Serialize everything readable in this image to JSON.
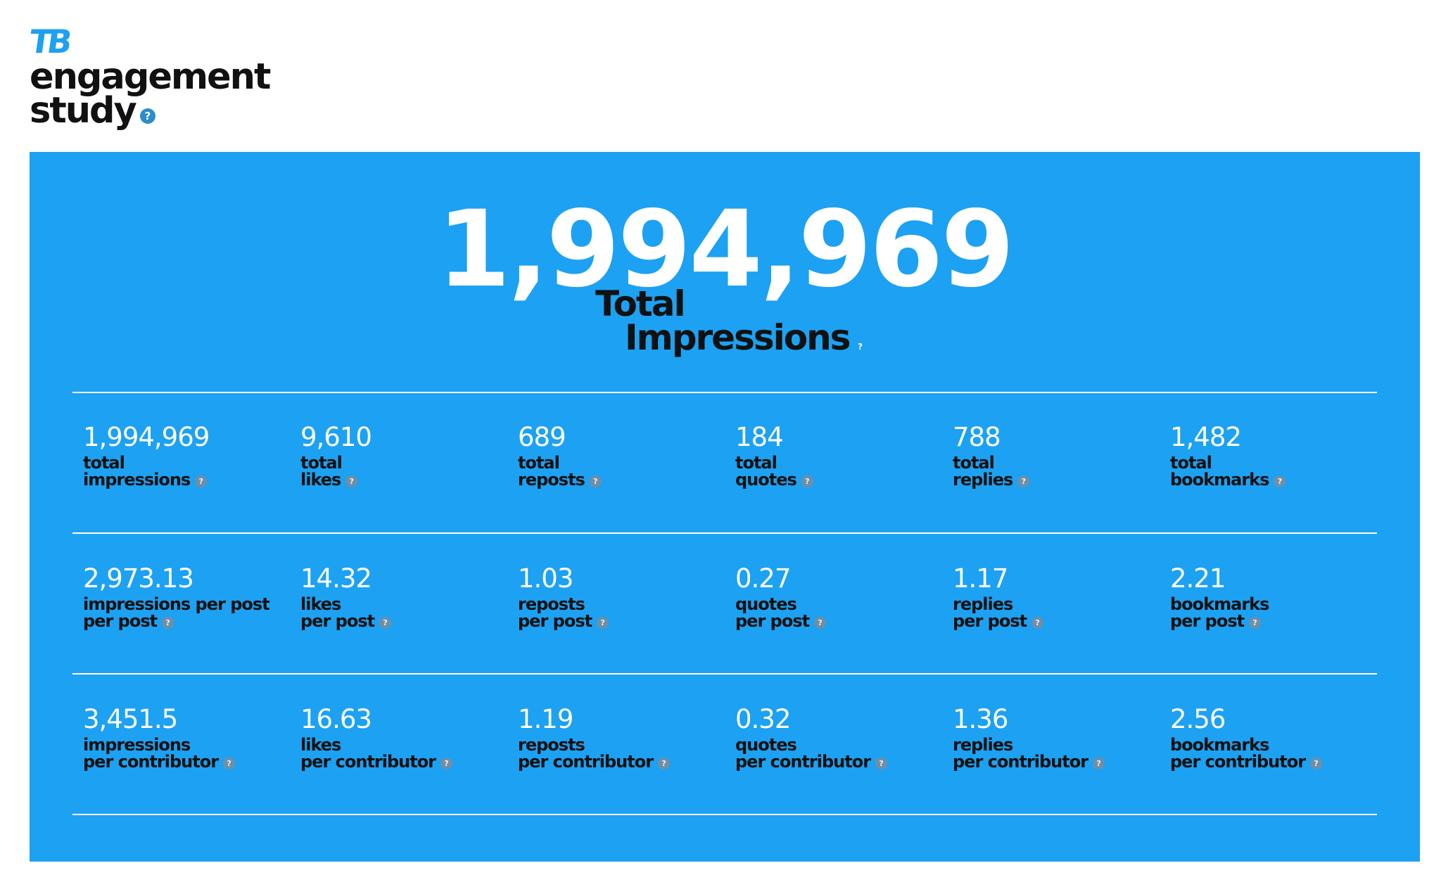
{
  "brand": {
    "logo": "TB",
    "title_line1": "engagement",
    "title_line2": "study",
    "help": "?"
  },
  "hero": {
    "value": "1,994,969",
    "label_line1": "Total",
    "label_line2": "Impressions",
    "help": "?"
  },
  "colors": {
    "panel": "#1da1f2",
    "accent": "#1da1f2",
    "value_text": "#ffffff",
    "label_text": "#111111"
  },
  "icons": {
    "help": "help-circle-icon"
  },
  "rows": [
    {
      "stats": [
        {
          "value": "1,994,969",
          "line1": "total",
          "line2": "impressions",
          "help": "?"
        },
        {
          "value": "9,610",
          "line1": "total",
          "line2": "likes",
          "help": "?"
        },
        {
          "value": "689",
          "line1": "total",
          "line2": "reposts",
          "help": "?"
        },
        {
          "value": "184",
          "line1": "total",
          "line2": "quotes",
          "help": "?"
        },
        {
          "value": "788",
          "line1": "total",
          "line2": "replies",
          "help": "?"
        },
        {
          "value": "1,482",
          "line1": "total",
          "line2": "bookmarks",
          "help": "?"
        }
      ]
    },
    {
      "stats": [
        {
          "value": "2,973.13",
          "line1": "impressions per post",
          "line2": "per post",
          "help": "?"
        },
        {
          "value": "14.32",
          "line1": "likes",
          "line2": "per post",
          "help": "?"
        },
        {
          "value": "1.03",
          "line1": "reposts",
          "line2": "per post",
          "help": "?"
        },
        {
          "value": "0.27",
          "line1": "quotes",
          "line2": "per post",
          "help": "?"
        },
        {
          "value": "1.17",
          "line1": "replies",
          "line2": "per post",
          "help": "?"
        },
        {
          "value": "2.21",
          "line1": "bookmarks",
          "line2": "per post",
          "help": "?"
        }
      ]
    },
    {
      "stats": [
        {
          "value": "3,451.5",
          "line1": "impressions",
          "line2": "per contributor",
          "help": "?"
        },
        {
          "value": "16.63",
          "line1": "likes",
          "line2": "per contributor",
          "help": "?"
        },
        {
          "value": "1.19",
          "line1": "reposts",
          "line2": "per contributor",
          "help": "?"
        },
        {
          "value": "0.32",
          "line1": "quotes",
          "line2": "per contributor",
          "help": "?"
        },
        {
          "value": "1.36",
          "line1": "replies",
          "line2": "per contributor",
          "help": "?"
        },
        {
          "value": "2.56",
          "line1": "bookmarks",
          "line2": "per contributor",
          "help": "?"
        }
      ]
    }
  ]
}
